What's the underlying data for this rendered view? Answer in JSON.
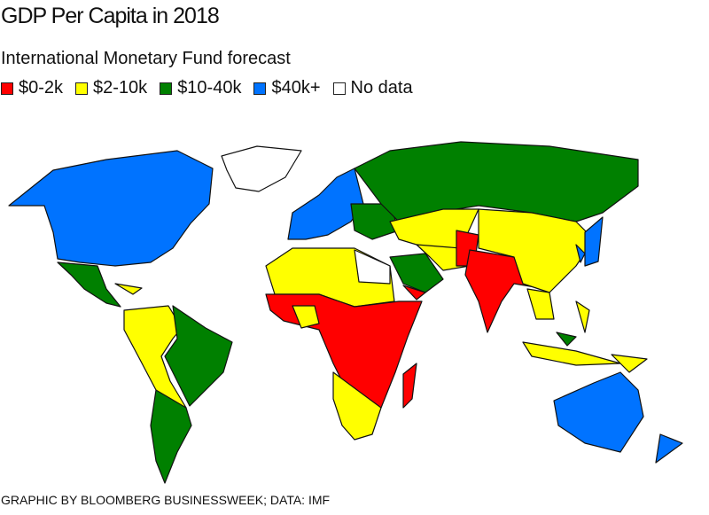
{
  "header": {
    "title": "GDP Per Capita in 2018",
    "subtitle": "International Monetary Fund forecast"
  },
  "legend": [
    {
      "label": "$0-2k",
      "color": "#ff0000"
    },
    {
      "label": "$2-10k",
      "color": "#ffff00"
    },
    {
      "label": "$10-40k",
      "color": "#008000"
    },
    {
      "label": "$40k+",
      "color": "#0073ff"
    },
    {
      "label": "No data",
      "color": "#ffffff"
    }
  ],
  "footer": {
    "credit": "GRAPHIC BY BLOOMBERG BUSINESSWEEK; DATA: IMF"
  },
  "chart_data": {
    "type": "choropleth",
    "title": "GDP Per Capita in 2018",
    "subtitle": "International Monetary Fund forecast",
    "categories": [
      "$0-2k",
      "$2-10k",
      "$10-40k",
      "$40k+",
      "No data"
    ],
    "legend_placement": "top-left"
  }
}
